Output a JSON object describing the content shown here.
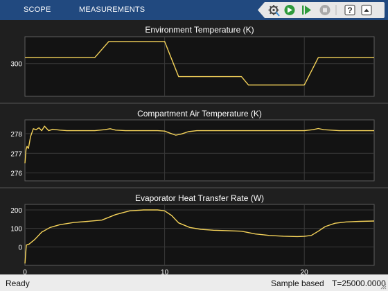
{
  "toolbar": {
    "tabs": [
      {
        "label": "SCOPE"
      },
      {
        "label": "MEASUREMENTS"
      }
    ],
    "icons": [
      "settings-gear-icon",
      "run-icon",
      "step-forward-icon",
      "stop-icon",
      "help-icon",
      "collapse-toolstrip-icon"
    ],
    "colors": {
      "bar": "#21497f",
      "run": "#2e9a3c",
      "disabled": "#a9a9a9"
    }
  },
  "plots": {
    "x_multiplier": "x10",
    "x_exponent": "3",
    "colors": {
      "background": "#1f1f1f",
      "axes": "#131313",
      "grid": "#3a3a3a",
      "line": "#f5d35a",
      "text": "#ffffff"
    }
  },
  "chart_data": [
    {
      "type": "line",
      "title": "Environment Temperature (K)",
      "xlim": [
        0,
        25000
      ],
      "ylim": [
        294.5,
        304.5
      ],
      "yticks": [
        300
      ],
      "series": [
        {
          "x": [
            0,
            5000,
            6000,
            10000,
            11000,
            15500,
            16000,
            20000,
            21000,
            25000
          ],
          "y": [
            301,
            301,
            303.7,
            303.7,
            297.8,
            297.8,
            296.4,
            296.4,
            301,
            301
          ]
        }
      ]
    },
    {
      "type": "line",
      "title": "Compartment Air Temperature (K)",
      "xlim": [
        0,
        25000
      ],
      "ylim": [
        275.6,
        278.7
      ],
      "yticks": [
        276,
        277,
        278
      ],
      "series": [
        {
          "x": [
            0,
            80,
            150,
            250,
            400,
            600,
            800,
            1000,
            1200,
            1400,
            1700,
            2000,
            2500,
            3000,
            5000,
            5700,
            6100,
            6500,
            7200,
            9500,
            10000,
            10400,
            10800,
            11200,
            11700,
            12300,
            13500,
            16000,
            20000,
            20600,
            21000,
            21400,
            21900,
            22500,
            25000
          ],
          "y": [
            276.5,
            277.2,
            277.35,
            277.25,
            277.85,
            278.25,
            278.2,
            278.3,
            278.15,
            278.38,
            278.15,
            278.22,
            278.18,
            278.15,
            278.15,
            278.2,
            278.25,
            278.18,
            278.15,
            278.15,
            278.13,
            278.02,
            277.92,
            277.98,
            278.1,
            278.15,
            278.15,
            278.15,
            278.15,
            278.2,
            278.26,
            278.2,
            278.18,
            278.15,
            278.15
          ]
        }
      ]
    },
    {
      "type": "line",
      "title": "Evaporator Heat Transfer Rate (W)",
      "xlim": [
        0,
        25000
      ],
      "ylim": [
        -100,
        230
      ],
      "yticks": [
        0,
        100,
        200
      ],
      "xticks": [
        0,
        10,
        20
      ],
      "series": [
        {
          "x": [
            0,
            100,
            300,
            700,
            1200,
            1800,
            2500,
            3500,
            4500,
            5500,
            6500,
            7500,
            8500,
            9500,
            10000,
            10500,
            11000,
            11800,
            12600,
            13500,
            14500,
            15500,
            16500,
            17500,
            18500,
            19500,
            20000,
            20500,
            21000,
            21500,
            22200,
            23000,
            24000,
            25000
          ],
          "y": [
            -90,
            10,
            15,
            40,
            80,
            105,
            120,
            132,
            138,
            145,
            175,
            195,
            200,
            200,
            195,
            170,
            130,
            105,
            95,
            90,
            88,
            85,
            70,
            62,
            58,
            56,
            57,
            62,
            85,
            110,
            128,
            135,
            138,
            140
          ]
        }
      ]
    }
  ],
  "status": {
    "left": "Ready",
    "mode": "Sample based",
    "time": "T=25000.0000"
  }
}
